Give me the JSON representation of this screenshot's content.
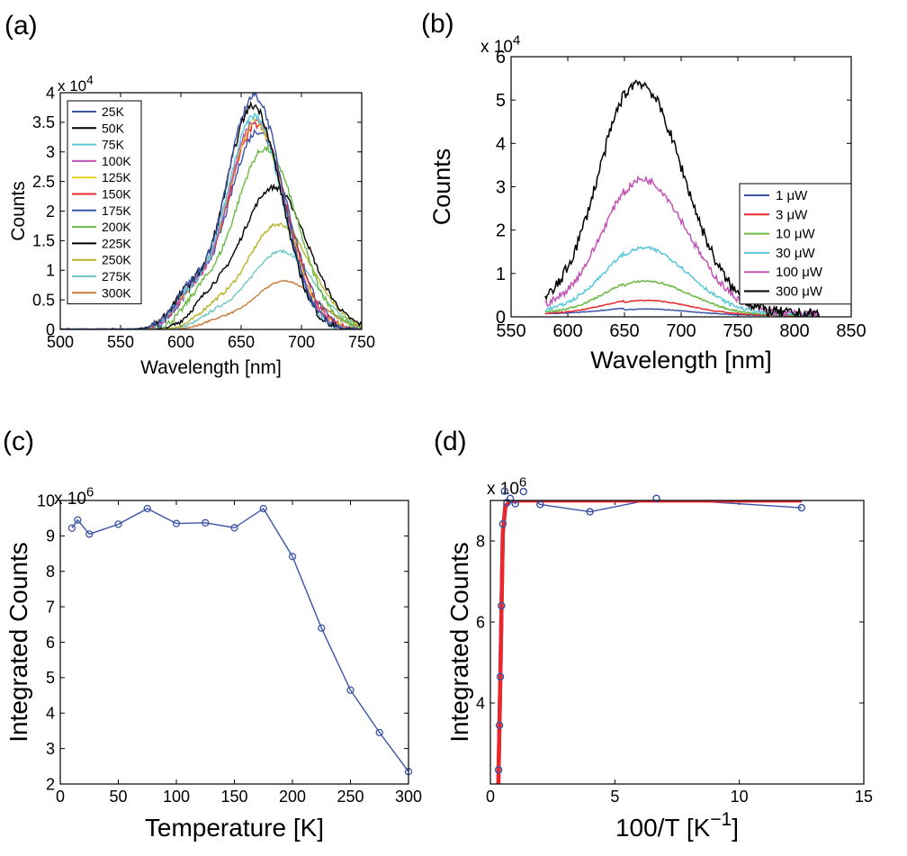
{
  "chart_data": [
    {
      "panel": "(a)",
      "type": "line",
      "xlabel": "Wavelength [nm]",
      "ylabel": "Counts",
      "y_multiplier": "x 10^4",
      "xlim": [
        500,
        750
      ],
      "ylim": [
        0,
        4
      ],
      "xticks": [
        "500",
        "550",
        "600",
        "650",
        "700",
        "750"
      ],
      "yticks": [
        "0",
        "0.5",
        "1",
        "1.5",
        "2",
        "2.5",
        "3",
        "3.5",
        "4"
      ],
      "legend_position": "top-left",
      "series": [
        {
          "name": "25K",
          "color": "#3c54a5",
          "peak_x": 661,
          "peak_y": 3.95,
          "fwhm": 55
        },
        {
          "name": "50K",
          "color": "#000000",
          "peak_x": 660,
          "peak_y": 3.78,
          "fwhm": 55
        },
        {
          "name": "75K",
          "color": "#5ac8d8",
          "peak_x": 661,
          "peak_y": 3.6,
          "fwhm": 55
        },
        {
          "name": "100K",
          "color": "#c055b5",
          "peak_x": 662,
          "peak_y": 3.55,
          "fwhm": 56
        },
        {
          "name": "125K",
          "color": "#e2d623",
          "peak_x": 662,
          "peak_y": 3.5,
          "fwhm": 57
        },
        {
          "name": "150K",
          "color": "#e8282d",
          "peak_x": 663,
          "peak_y": 3.45,
          "fwhm": 58
        },
        {
          "name": "175K",
          "color": "#3c54a5",
          "peak_x": 664,
          "peak_y": 3.35,
          "fwhm": 59
        },
        {
          "name": "200K",
          "color": "#6ab942",
          "peak_x": 670,
          "peak_y": 3.05,
          "fwhm": 62
        },
        {
          "name": "225K",
          "color": "#000000",
          "peak_x": 677,
          "peak_y": 2.4,
          "fwhm": 66
        },
        {
          "name": "250K",
          "color": "#b7b42a",
          "peak_x": 681,
          "peak_y": 1.78,
          "fwhm": 64
        },
        {
          "name": "275K",
          "color": "#70c6c0",
          "peak_x": 683,
          "peak_y": 1.32,
          "fwhm": 64
        },
        {
          "name": "300K",
          "color": "#c87a3a",
          "peak_x": 686,
          "peak_y": 0.82,
          "fwhm": 62
        }
      ]
    },
    {
      "panel": "(b)",
      "type": "line",
      "xlabel": "Wavelength [nm]",
      "ylabel": "Counts",
      "y_multiplier": "x 10^4",
      "xlim": [
        550,
        850
      ],
      "ylim": [
        0,
        6
      ],
      "xticks": [
        "550",
        "600",
        "650",
        "700",
        "750",
        "800",
        "850"
      ],
      "yticks": [
        "0",
        "1",
        "2",
        "3",
        "4",
        "5",
        "6"
      ],
      "legend_position": "right",
      "series": [
        {
          "name": "1 μW",
          "color": "#3c54a5",
          "x_start": 580,
          "x_end": 822,
          "peak_x": 668,
          "peak_y": 0.2,
          "baseline": 0.05
        },
        {
          "name": "3 μW",
          "color": "#e8282d",
          "x_start": 580,
          "x_end": 822,
          "peak_x": 668,
          "peak_y": 0.4,
          "baseline": 0.05
        },
        {
          "name": "10 μW",
          "color": "#6ab942",
          "x_start": 580,
          "x_end": 822,
          "peak_x": 668,
          "peak_y": 0.85,
          "baseline": 0.06
        },
        {
          "name": "30 μW",
          "color": "#5ac8d8",
          "x_start": 580,
          "x_end": 822,
          "peak_x": 667,
          "peak_y": 1.62,
          "baseline": 0.08
        },
        {
          "name": "100 μW",
          "color": "#c055b5",
          "x_start": 580,
          "x_end": 822,
          "peak_x": 666,
          "peak_y": 3.22,
          "baseline": 0.12
        },
        {
          "name": "300 μW",
          "color": "#000000",
          "x_start": 580,
          "x_end": 822,
          "peak_x": 662,
          "peak_y": 5.45,
          "baseline": 0.1
        }
      ]
    },
    {
      "panel": "(c)",
      "type": "line",
      "xlabel": "Temperature [K]",
      "ylabel": "Integrated Counts",
      "y_multiplier": "x 10^6",
      "xlim": [
        0,
        300
      ],
      "ylim": [
        2,
        10
      ],
      "xticks": [
        "0",
        "50",
        "100",
        "150",
        "200",
        "250",
        "300"
      ],
      "yticks": [
        "2",
        "3",
        "4",
        "5",
        "6",
        "7",
        "8",
        "9",
        "10"
      ],
      "series": [
        {
          "name": "data",
          "color": "#3c54a5",
          "x": [
            10,
            15,
            25,
            50,
            75,
            100,
            125,
            150,
            175,
            200,
            225,
            250,
            275,
            300
          ],
          "y": [
            9.22,
            9.45,
            9.05,
            9.33,
            9.77,
            9.35,
            9.37,
            9.23,
            9.77,
            8.42,
            6.4,
            4.65,
            3.45,
            2.35
          ]
        }
      ]
    },
    {
      "panel": "(d)",
      "type": "line",
      "xlabel": "100/T [K",
      "xlabel_superscript": "−1",
      "xlabel_suffix": "]",
      "ylabel": "Integrated Counts",
      "y_multiplier": "x 10^6",
      "xlim": [
        0,
        15
      ],
      "ylim": [
        2,
        9
      ],
      "xticks": [
        "0",
        "5",
        "10",
        "15"
      ],
      "yticks": [
        "4",
        "6",
        "8"
      ],
      "series": [
        {
          "name": "data",
          "color": "#3c54a5",
          "x": [
            0.33,
            0.364,
            0.4,
            0.444,
            0.5,
            0.571,
            0.667,
            0.8,
            1.0,
            1.33,
            2.0,
            4.0,
            6.67,
            12.5
          ],
          "y": [
            2.35,
            3.45,
            4.65,
            6.4,
            8.42,
            9.23,
            8.95,
            9.05,
            8.92,
            9.22,
            8.9,
            8.72,
            9.05,
            8.82
          ]
        },
        {
          "name": "fit",
          "color": "#e8282d",
          "x": [
            0.3,
            0.33,
            0.4,
            0.5,
            0.6,
            0.8,
            1.0,
            2.0,
            5.0,
            8.0,
            12.5
          ],
          "y": [
            1.2,
            2.3,
            4.7,
            8.2,
            8.85,
            8.98,
            9.0,
            9.0,
            9.0,
            9.0,
            9.0
          ]
        }
      ]
    }
  ]
}
